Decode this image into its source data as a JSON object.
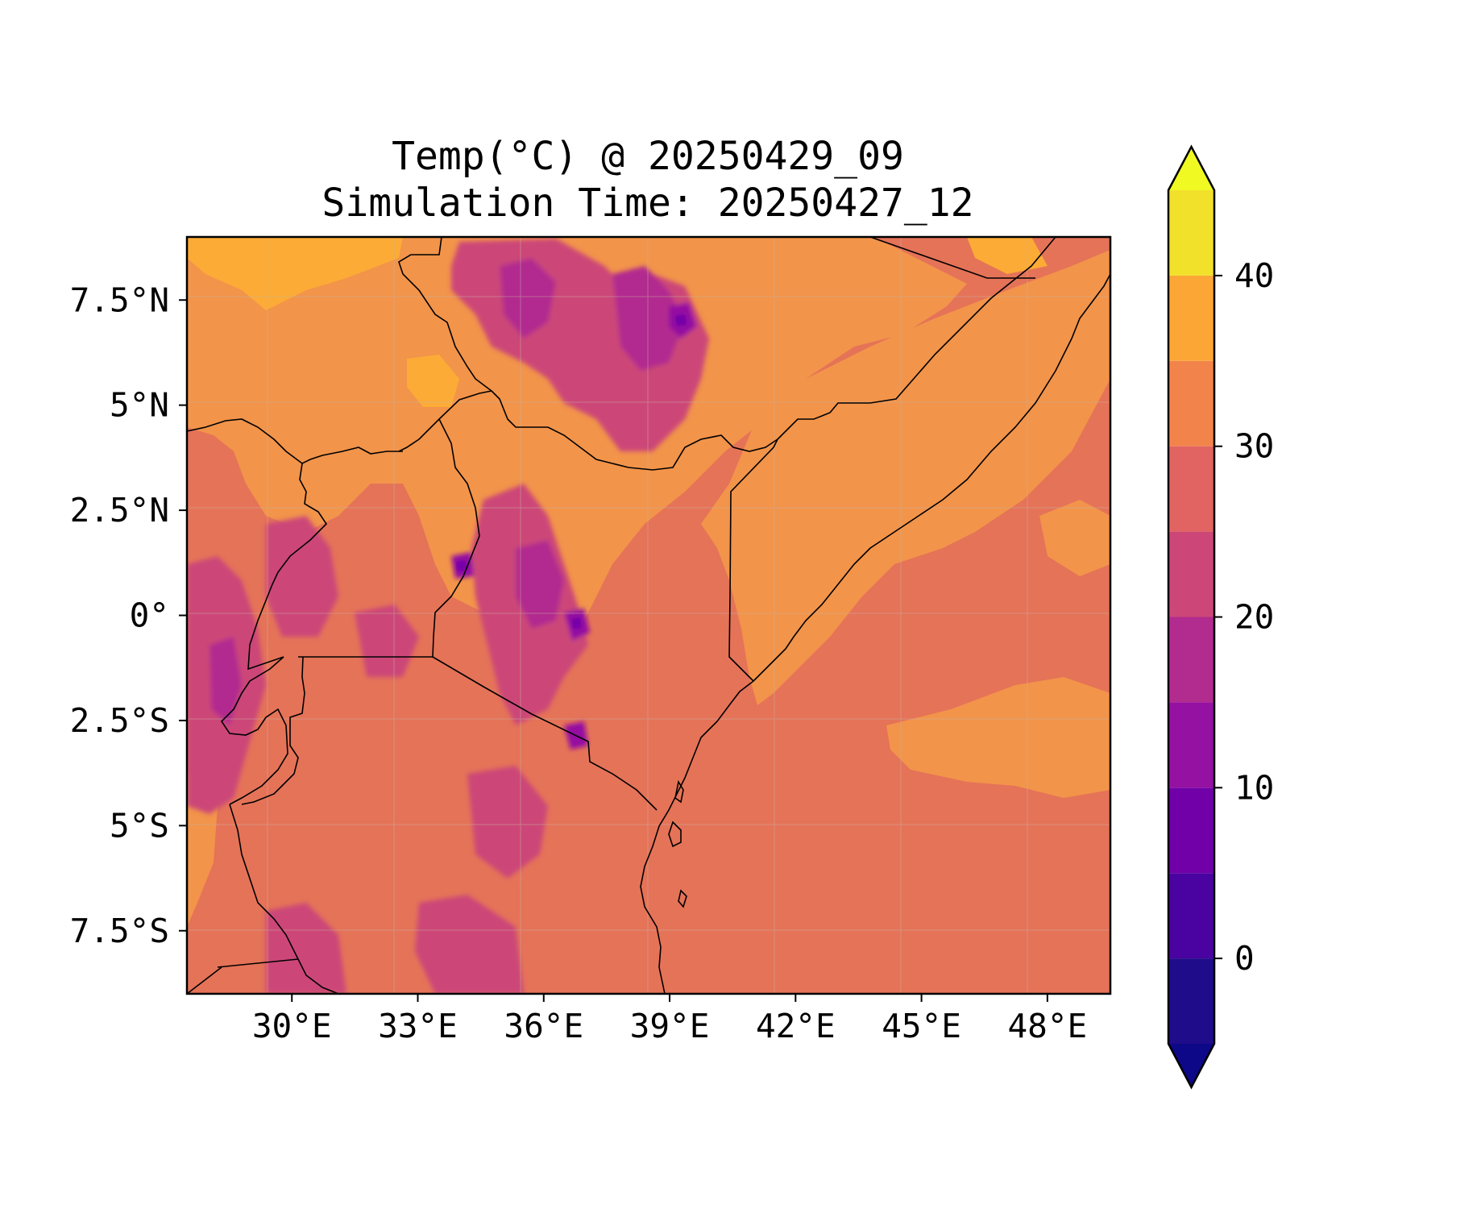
{
  "chart_data": {
    "type": "heatmap",
    "title": [
      "Temp(°C) @ 20250429_09",
      "Simulation Time: 20250427_12"
    ],
    "map_region": {
      "lon_range": [
        27.5,
        49.5
      ],
      "lat_range": [
        -9,
        9
      ]
    },
    "x_ticks": [
      {
        "lon": 30,
        "label": "30°E"
      },
      {
        "lon": 33,
        "label": "33°E"
      },
      {
        "lon": 36,
        "label": "36°E"
      },
      {
        "lon": 39,
        "label": "39°E"
      },
      {
        "lon": 42,
        "label": "42°E"
      },
      {
        "lon": 45,
        "label": "45°E"
      },
      {
        "lon": 48,
        "label": "48°E"
      }
    ],
    "y_ticks": [
      {
        "lat": 7.5,
        "label": "7.5°N"
      },
      {
        "lat": 5,
        "label": "5°N"
      },
      {
        "lat": 2.5,
        "label": "2.5°N"
      },
      {
        "lat": 0,
        "label": "0°"
      },
      {
        "lat": -2.5,
        "label": "2.5°S"
      },
      {
        "lat": -5,
        "label": "5°S"
      },
      {
        "lat": -7.5,
        "label": "7.5°S"
      }
    ],
    "colorbar": {
      "levels": [
        -5,
        0,
        5,
        10,
        15,
        20,
        25,
        30,
        35,
        40,
        45
      ],
      "colors": [
        "#1f0c8a",
        "#4a03a0",
        "#7100a8",
        "#9511a1",
        "#b22b8f",
        "#cc4778",
        "#e16462",
        "#f2844b",
        "#fca636",
        "#f1e12b"
      ],
      "under_color": "#0d0887",
      "over_color": "#f0f921",
      "extend": "both",
      "tick_labels": [
        {
          "value": 0,
          "label": "0"
        },
        {
          "value": 10,
          "label": "10"
        },
        {
          "value": 20,
          "label": "20"
        },
        {
          "value": 30,
          "label": "30"
        },
        {
          "value": 40,
          "label": "40"
        }
      ]
    },
    "field_summary": {
      "ocean_celsius": "25-30",
      "northern_kenya_somalia_lowlands_celsius": "30-35",
      "ethiopian_and_kenyan_highlands_celsius": "10-25",
      "hottest_patches_celsius": "35-40"
    },
    "grid": true
  }
}
